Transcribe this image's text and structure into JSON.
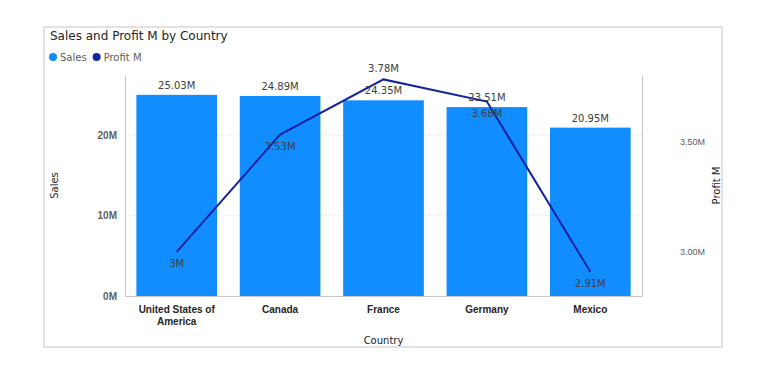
{
  "chart_data": {
    "type": "bar",
    "title": "Sales and Profit M by Country",
    "x_label": "Country",
    "y_label": "Sales",
    "y2_label": "Profit M",
    "categories": [
      "United States of America",
      "Canada",
      "France",
      "Germany",
      "Mexico"
    ],
    "series": [
      {
        "name": "Sales",
        "type": "bar",
        "color": "#118DFF",
        "values": [
          25.03,
          24.89,
          24.35,
          23.51,
          20.95
        ],
        "value_labels": [
          "25.03M",
          "24.89M",
          "24.35M",
          "23.51M",
          "20.95M"
        ]
      },
      {
        "name": "Profit M",
        "type": "line",
        "color": "#12239E",
        "axis": "y2",
        "values": [
          3,
          3.53,
          3.78,
          3.68,
          2.91
        ],
        "value_labels": [
          "3M",
          "3.53M",
          "3.78M",
          "3.68M",
          "2.91M"
        ]
      }
    ],
    "ylim": [
      0,
      27.5
    ],
    "yticks": [
      {
        "value": 0,
        "label": "0M"
      },
      {
        "value": 10,
        "label": "10M"
      },
      {
        "value": 20,
        "label": "20M"
      }
    ],
    "y2lim": [
      2.8,
      3.8
    ],
    "y2ticks": [
      {
        "value": 3,
        "label": "3.00M"
      },
      {
        "value": 3.5,
        "label": "3.50M"
      }
    ],
    "grid": true,
    "legend": "top-left",
    "data_labels": true
  }
}
